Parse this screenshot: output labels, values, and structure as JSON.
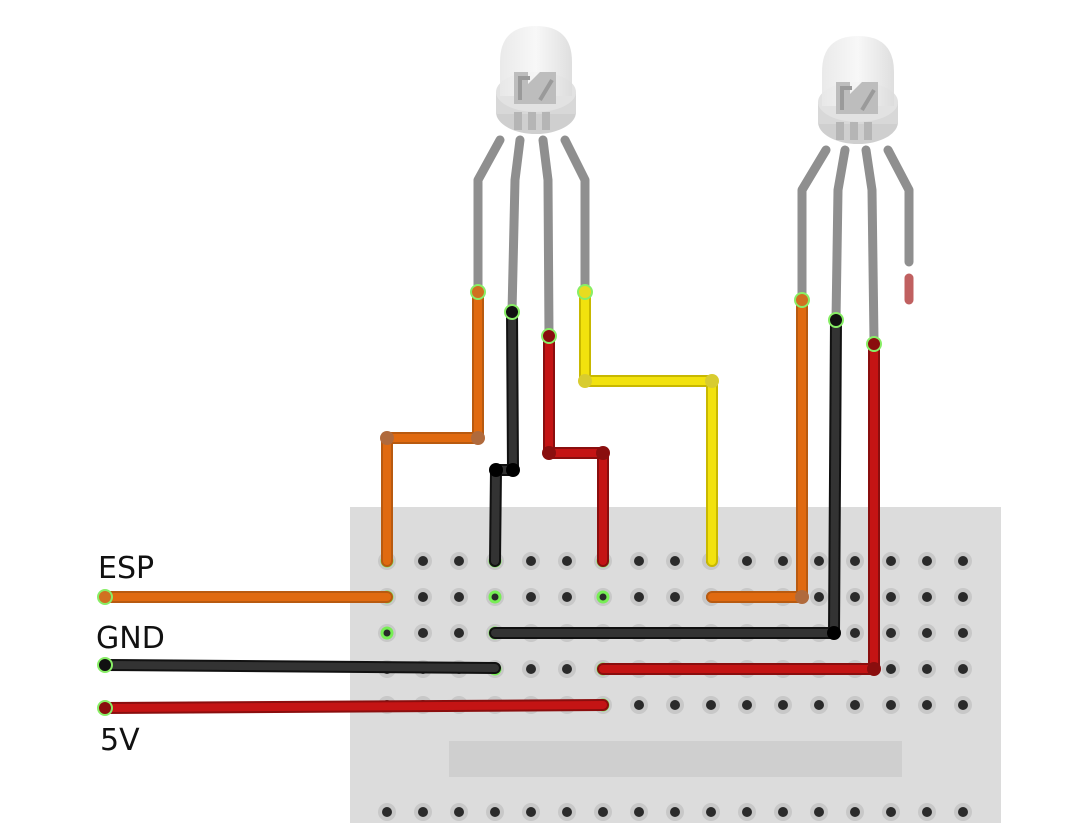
{
  "labels": {
    "esp": "ESP",
    "gnd": "GND",
    "five_v": "5V"
  },
  "colors": {
    "wire_orange": "#e06a10",
    "wire_black": "#222222",
    "wire_red": "#c41414",
    "wire_yellow": "#f2e20e",
    "led_leg": "#8f8f8f",
    "breadboard": "#dcdcdc",
    "hole": "#2a2a2a",
    "active_hole_glow": "#77ee55"
  },
  "components": {
    "leds": [
      {
        "type": "RGB LED",
        "legs": 4
      },
      {
        "type": "RGB LED",
        "legs": 4
      }
    ],
    "breadboard": {
      "type": "half breadboard"
    }
  }
}
